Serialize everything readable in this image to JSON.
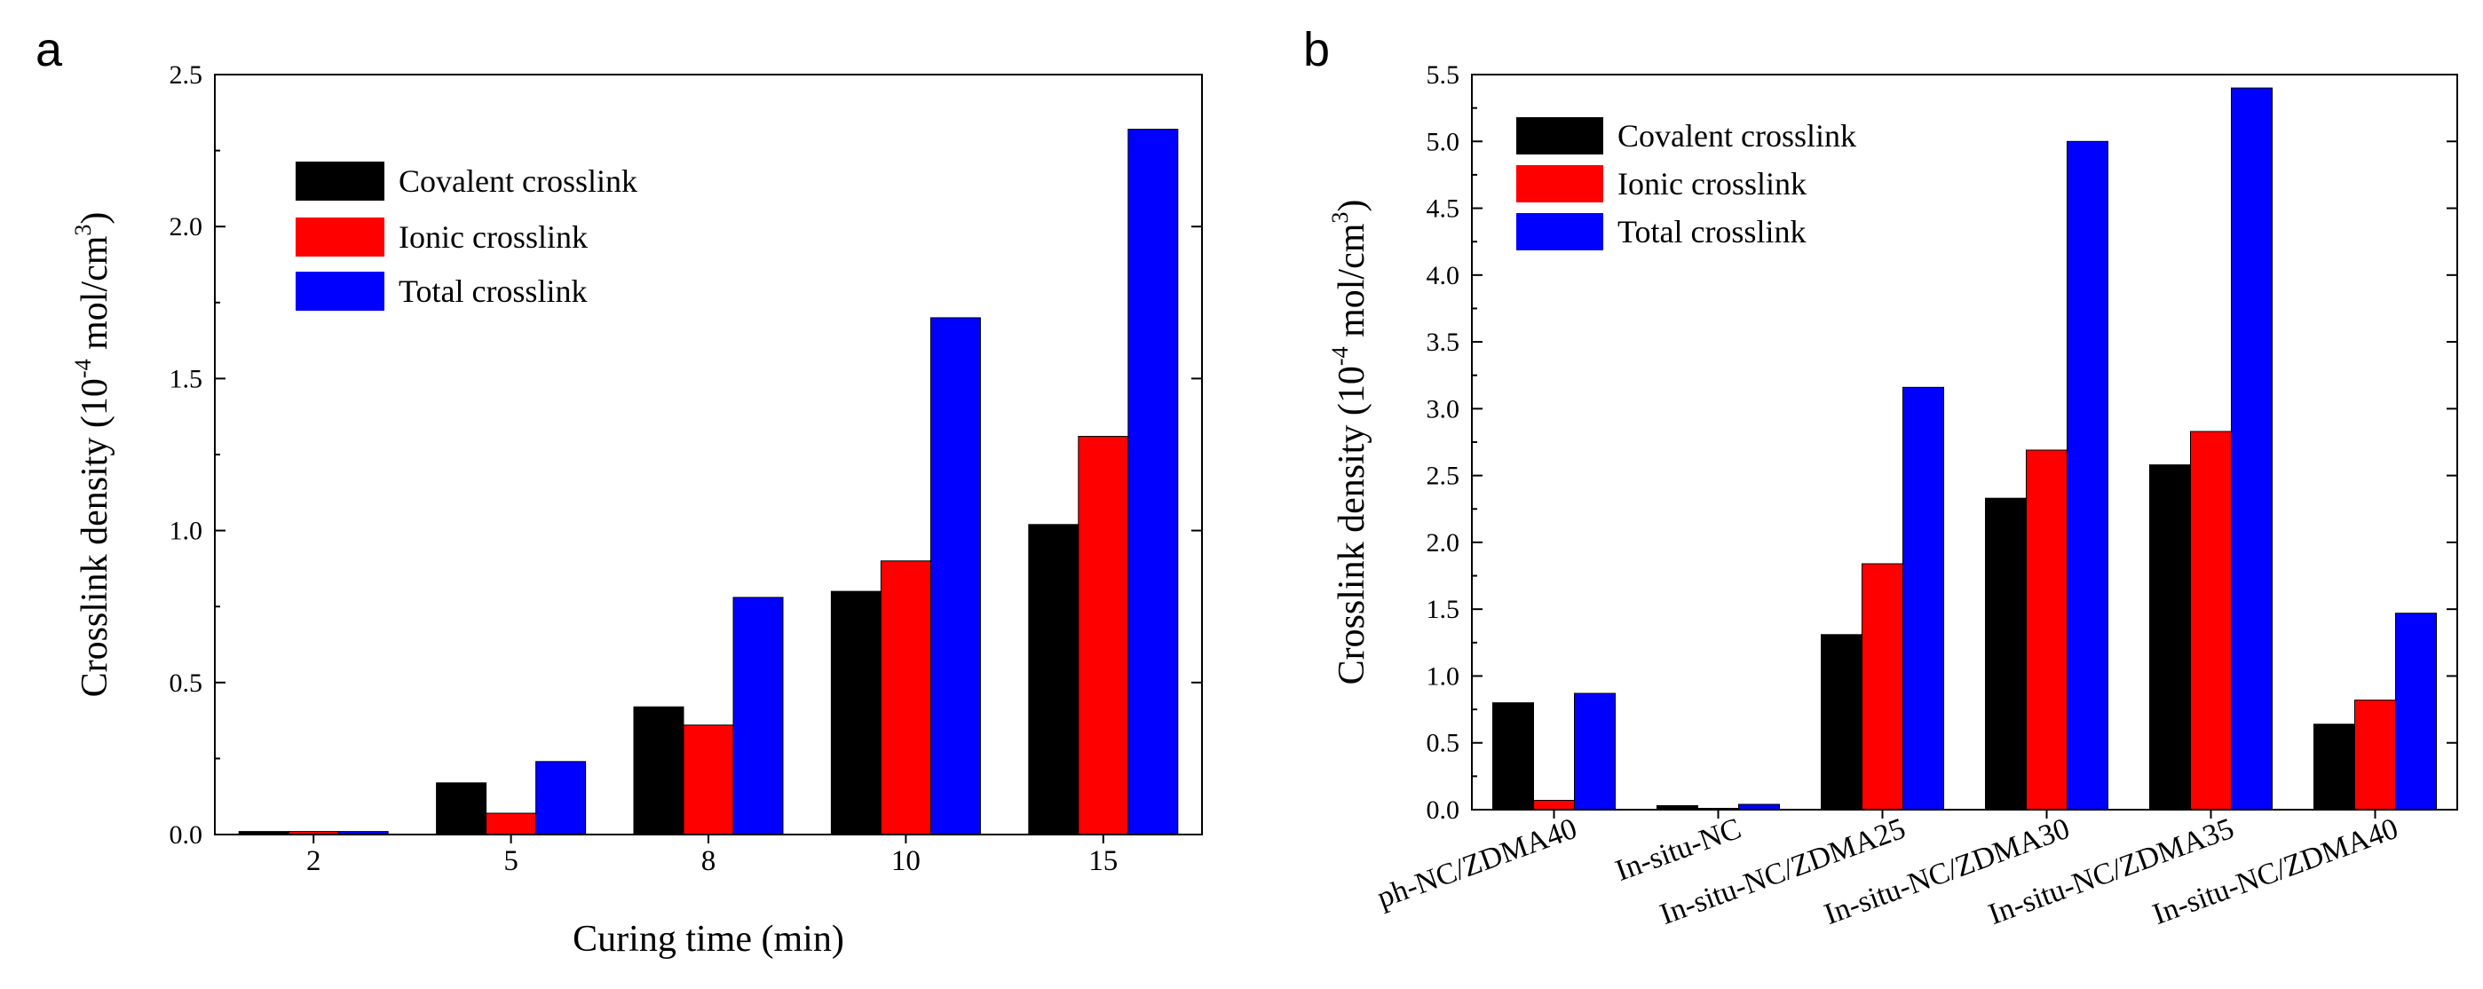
{
  "colors": {
    "covalent": "#000000",
    "ionic": "#ff0000",
    "total": "#0000ff"
  },
  "chart_data": [
    {
      "panel_label": "a",
      "type": "bar",
      "xlabel": "Curing time (min)",
      "ylabel": {
        "prefix": "Crosslink density (10",
        "exponent": "-4",
        "middle": " mol/cm",
        "unit_exponent": "3",
        "suffix": ")"
      },
      "ylim": [
        0,
        2.5
      ],
      "yticks": [
        "0.0",
        "0.5",
        "1.0",
        "1.5",
        "2.0",
        "2.5"
      ],
      "categories": [
        "2",
        "5",
        "8",
        "10",
        "15"
      ],
      "series": [
        {
          "name": "Covalent crosslink",
          "color": "#000000",
          "values": [
            0.01,
            0.17,
            0.42,
            0.8,
            1.02
          ]
        },
        {
          "name": "Ionic crosslink",
          "color": "#ff0000",
          "values": [
            0.01,
            0.07,
            0.36,
            0.9,
            1.31
          ]
        },
        {
          "name": "Total crosslink",
          "color": "#0000ff",
          "values": [
            0.01,
            0.24,
            0.78,
            1.7,
            2.32
          ]
        }
      ],
      "legend": "top-left"
    },
    {
      "panel_label": "b",
      "type": "bar",
      "xlabel": "",
      "ylabel": {
        "prefix": "Crosslink density (10",
        "exponent": "-4",
        "middle": " mol/cm",
        "unit_exponent": "3",
        "suffix": ")"
      },
      "ylim": [
        0,
        5.5
      ],
      "yticks": [
        "0.0",
        "0.5",
        "1.0",
        "1.5",
        "2.0",
        "2.5",
        "3.0",
        "3.5",
        "4.0",
        "4.5",
        "5.0",
        "5.5"
      ],
      "categories": [
        "ph-NC/ZDMA40",
        "In-situ-NC",
        "In-situ-NC/ZDMA25",
        "In-situ-NC/ZDMA30",
        "In-situ-NC/ZDMA35",
        "In-situ-NC/ZDMA40"
      ],
      "series": [
        {
          "name": "Covalent crosslink",
          "color": "#000000",
          "values": [
            0.8,
            0.03,
            1.31,
            2.33,
            2.58,
            0.64
          ]
        },
        {
          "name": "Ionic crosslink",
          "color": "#ff0000",
          "values": [
            0.07,
            0.01,
            1.84,
            2.69,
            2.83,
            0.82
          ]
        },
        {
          "name": "Total crosslink",
          "color": "#0000ff",
          "values": [
            0.87,
            0.04,
            3.16,
            5.0,
            5.4,
            1.47
          ]
        }
      ],
      "legend": "top-left"
    }
  ]
}
